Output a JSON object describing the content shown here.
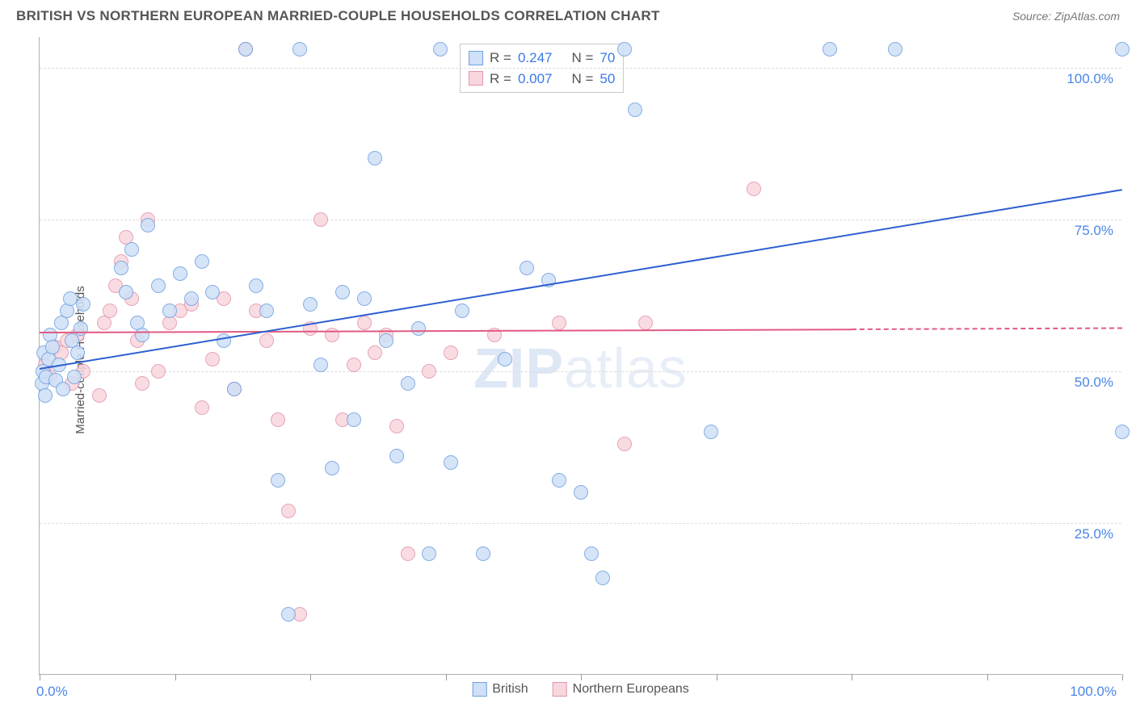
{
  "header": {
    "title": "BRITISH VS NORTHERN EUROPEAN MARRIED-COUPLE HOUSEHOLDS CORRELATION CHART",
    "source": "Source: ZipAtlas.com"
  },
  "chart": {
    "type": "scatter",
    "ylabel": "Married-couple Households",
    "xlim": [
      0,
      100
    ],
    "ylim": [
      0,
      105
    ],
    "y_ticks": [
      25,
      50,
      75,
      100
    ],
    "y_tick_labels": [
      "25.0%",
      "50.0%",
      "75.0%",
      "100.0%"
    ],
    "x_tick_positions": [
      0,
      12.5,
      25,
      37.5,
      50,
      62.5,
      75,
      87.5,
      100
    ],
    "x_min_label": "0.0%",
    "x_max_label": "100.0%",
    "grid_color": "#dcdcdc",
    "axis_color": "#b0b0b0",
    "tick_label_color": "#4a86e8",
    "background_color": "#ffffff",
    "watermark_main": "ZIP",
    "watermark_sub": "atlas",
    "series": {
      "british": {
        "label": "British",
        "marker_fill": "#cfe0f7",
        "marker_stroke": "#6fa0e0",
        "marker_radius": 9,
        "trend_color": "#2e5fd1",
        "trend_width": 2,
        "trend_start": [
          0,
          50.5
        ],
        "trend_end": [
          100,
          80
        ],
        "R": "0.247",
        "N": "70",
        "points": [
          [
            0.2,
            48
          ],
          [
            0.3,
            50
          ],
          [
            0.4,
            53
          ],
          [
            0.5,
            46
          ],
          [
            0.6,
            49
          ],
          [
            0.8,
            52
          ],
          [
            1.0,
            56
          ],
          [
            1.2,
            54
          ],
          [
            1.5,
            48.5
          ],
          [
            1.8,
            51
          ],
          [
            2.0,
            58
          ],
          [
            2.2,
            47
          ],
          [
            2.5,
            60
          ],
          [
            2.8,
            62
          ],
          [
            3.0,
            55
          ],
          [
            3.2,
            49
          ],
          [
            3.5,
            53
          ],
          [
            3.8,
            57
          ],
          [
            4.0,
            61
          ],
          [
            7.5,
            67
          ],
          [
            8.0,
            63
          ],
          [
            8.5,
            70
          ],
          [
            9.0,
            58
          ],
          [
            9.5,
            56
          ],
          [
            10,
            74
          ],
          [
            11,
            64
          ],
          [
            12,
            60
          ],
          [
            13,
            66
          ],
          [
            14,
            62
          ],
          [
            15,
            68
          ],
          [
            16,
            63
          ],
          [
            17,
            55
          ],
          [
            18,
            47
          ],
          [
            19,
            103
          ],
          [
            20,
            64
          ],
          [
            21,
            60
          ],
          [
            22,
            32
          ],
          [
            23,
            10
          ],
          [
            24,
            103
          ],
          [
            25,
            61
          ],
          [
            26,
            51
          ],
          [
            27,
            34
          ],
          [
            28,
            63
          ],
          [
            29,
            42
          ],
          [
            30,
            62
          ],
          [
            31,
            85
          ],
          [
            32,
            55
          ],
          [
            33,
            36
          ],
          [
            34,
            48
          ],
          [
            35,
            57
          ],
          [
            36,
            20
          ],
          [
            37,
            103
          ],
          [
            38,
            35
          ],
          [
            39,
            60
          ],
          [
            41,
            20
          ],
          [
            43,
            52
          ],
          [
            45,
            67
          ],
          [
            47,
            65
          ],
          [
            48,
            32
          ],
          [
            50,
            30
          ],
          [
            51,
            20
          ],
          [
            52,
            16
          ],
          [
            54,
            103
          ],
          [
            55,
            93
          ],
          [
            62,
            40
          ],
          [
            73,
            103
          ],
          [
            79,
            103
          ],
          [
            100,
            103
          ],
          [
            100,
            40
          ]
        ]
      },
      "northern": {
        "label": "Northern Europeans",
        "marker_fill": "#f8d6de",
        "marker_stroke": "#e394ab",
        "marker_radius": 9,
        "trend_color": "#e05a82",
        "trend_width": 2,
        "trend_start": [
          0,
          56.5
        ],
        "trend_end": [
          75,
          57
        ],
        "trend_dash_end": [
          100,
          57.2
        ],
        "R": "0.007",
        "N": "50",
        "points": [
          [
            0.5,
            51
          ],
          [
            1.0,
            49
          ],
          [
            1.5,
            54
          ],
          [
            2.0,
            53
          ],
          [
            2.5,
            55
          ],
          [
            3.0,
            48
          ],
          [
            3.5,
            56
          ],
          [
            4.0,
            50
          ],
          [
            5.5,
            46
          ],
          [
            6.0,
            58
          ],
          [
            6.5,
            60
          ],
          [
            7.0,
            64
          ],
          [
            7.5,
            68
          ],
          [
            8.0,
            72
          ],
          [
            8.5,
            62
          ],
          [
            9.0,
            55
          ],
          [
            9.5,
            48
          ],
          [
            10,
            75
          ],
          [
            11,
            50
          ],
          [
            12,
            58
          ],
          [
            13,
            60
          ],
          [
            14,
            61
          ],
          [
            15,
            44
          ],
          [
            16,
            52
          ],
          [
            17,
            62
          ],
          [
            18,
            47
          ],
          [
            19,
            103
          ],
          [
            20,
            60
          ],
          [
            21,
            55
          ],
          [
            22,
            42
          ],
          [
            23,
            27
          ],
          [
            24,
            10
          ],
          [
            25,
            57
          ],
          [
            26,
            75
          ],
          [
            27,
            56
          ],
          [
            28,
            42
          ],
          [
            29,
            51
          ],
          [
            30,
            58
          ],
          [
            31,
            53
          ],
          [
            32,
            56
          ],
          [
            33,
            41
          ],
          [
            34,
            20
          ],
          [
            36,
            50
          ],
          [
            38,
            53
          ],
          [
            42,
            56
          ],
          [
            48,
            58
          ],
          [
            54,
            38
          ],
          [
            56,
            58
          ],
          [
            66,
            80
          ]
        ]
      }
    },
    "stats_box": {
      "rows": [
        {
          "swatch_fill": "#cfe0f7",
          "swatch_stroke": "#6fa0e0",
          "r_label": "R =",
          "r_val": "0.247",
          "n_label": "N =",
          "n_val": "70"
        },
        {
          "swatch_fill": "#f8d6de",
          "swatch_stroke": "#e394ab",
          "r_label": "R =",
          "r_val": "0.007",
          "n_label": "N =",
          "n_val": "50"
        }
      ]
    },
    "bottom_legend": [
      {
        "swatch_fill": "#cfe0f7",
        "swatch_stroke": "#6fa0e0",
        "label": "British"
      },
      {
        "swatch_fill": "#f8d6de",
        "swatch_stroke": "#e394ab",
        "label": "Northern Europeans"
      }
    ]
  }
}
